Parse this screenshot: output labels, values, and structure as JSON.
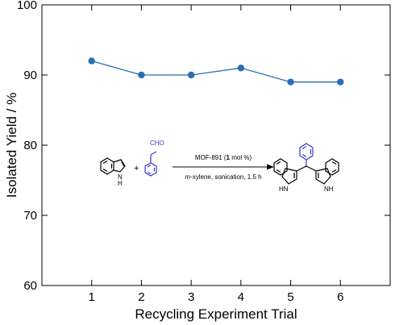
{
  "chart_data": {
    "type": "line",
    "xlabel": "Recycling Experiment Trial",
    "ylabel": "Isolated Yield / %",
    "x": [
      1,
      2,
      3,
      4,
      5,
      6
    ],
    "xlim": [
      0,
      7
    ],
    "ylim": [
      60,
      100
    ],
    "x_ticks": [
      1,
      2,
      3,
      4,
      5,
      6
    ],
    "y_ticks": [
      60,
      70,
      80,
      90,
      100
    ],
    "grid": false,
    "series": [
      {
        "values": [
          92,
          90,
          90,
          91,
          89,
          89
        ],
        "color": "#2a6db4"
      }
    ]
  },
  "scheme": {
    "plus": "+",
    "aldehyde_label": "CHO",
    "indole_nh": "N",
    "indole_h": "H",
    "product_nh": "HN",
    "product_nh_right": "NH",
    "arrow_top": {
      "pre": "MOF-891 (",
      "bold": "1",
      "post": " mol %)"
    },
    "arrow_bottom": {
      "italic": "m",
      "rest": "-xylene, sonication, 1.5 h"
    },
    "benzaldehyde_color": "#3a3ac8"
  }
}
